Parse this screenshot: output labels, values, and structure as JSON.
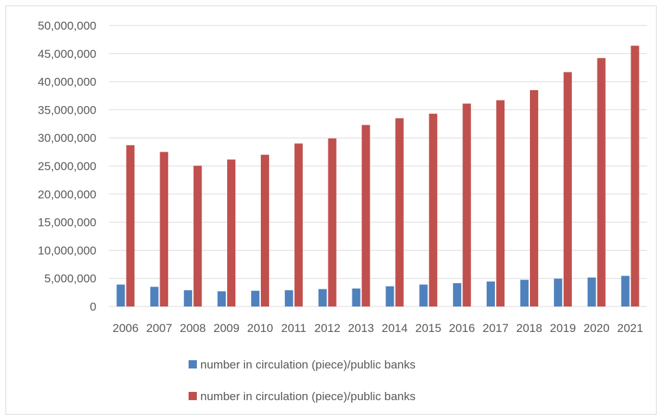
{
  "chart_data": {
    "type": "bar",
    "categories": [
      "2006",
      "2007",
      "2008",
      "2009",
      "2010",
      "2011",
      "2012",
      "2013",
      "2014",
      "2015",
      "2016",
      "2017",
      "2018",
      "2019",
      "2020",
      "2021"
    ],
    "series": [
      {
        "name": "number in circulation (piece)/public banks",
        "color": "#4f81bd",
        "values": [
          3900000,
          3500000,
          2900000,
          2700000,
          2800000,
          2900000,
          3100000,
          3200000,
          3600000,
          3900000,
          4150000,
          4450000,
          4750000,
          4950000,
          5150000,
          5450000
        ]
      },
      {
        "name": "number in circulation (piece)/public banks",
        "color": "#c0504d",
        "values": [
          28700000,
          27500000,
          25050000,
          26150000,
          27000000,
          29000000,
          29900000,
          32300000,
          33500000,
          34300000,
          36100000,
          36700000,
          38500000,
          41700000,
          44200000,
          46400000
        ]
      }
    ],
    "ylim": [
      0,
      50000000
    ],
    "yticks": [
      0,
      5000000,
      10000000,
      15000000,
      20000000,
      25000000,
      30000000,
      35000000,
      40000000,
      45000000,
      50000000
    ],
    "ytick_labels": [
      "0",
      "5,000,000",
      "10,000,000",
      "15,000,000",
      "20,000,000",
      "25,000,000",
      "30,000,000",
      "35,000,000",
      "40,000,000",
      "45,000,000",
      "50,000,000"
    ],
    "grid": true,
    "legend_position": "bottom",
    "colors": {
      "gridline": "#d9d9d9",
      "axis_text": "#595959"
    }
  }
}
